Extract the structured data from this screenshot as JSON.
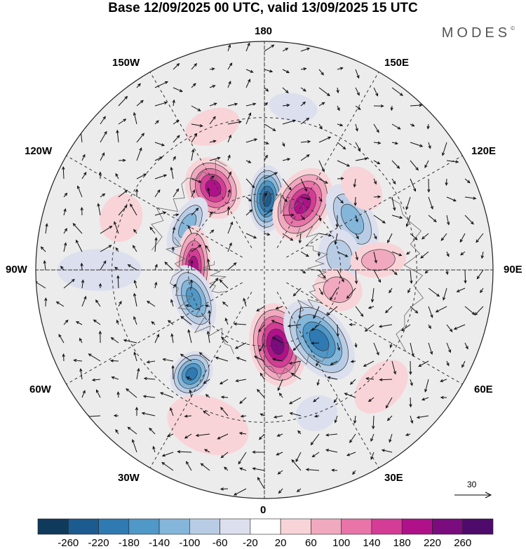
{
  "title": "Base 12/09/2025 00 UTC, valid 13/09/2025 15 UTC",
  "brand": "MODES",
  "brand_mark": "©",
  "longitude_labels": {
    "top": "180",
    "bottom": "0",
    "left": "90W",
    "right": "90E",
    "upper_left": "150W",
    "upper_right": "150E",
    "mid_left": "120W",
    "mid_right": "120E",
    "lower_left": "60W",
    "lower_right": "60E",
    "bottom_left": "30W",
    "bottom_right": "30E"
  },
  "wind_reference": {
    "value": "30"
  },
  "colorbar": {
    "labels": [
      "-260",
      "-220",
      "-180",
      "-140",
      "-100",
      "-60",
      "-20",
      "20",
      "60",
      "100",
      "140",
      "180",
      "220",
      "260"
    ],
    "colors": [
      "#0f3a5c",
      "#1c5b8f",
      "#2f7ab2",
      "#4f98c8",
      "#84b6da",
      "#b8cde5",
      "#dcdfee",
      "#ffffff",
      "#f8d4d8",
      "#f1a9bf",
      "#e874a8",
      "#d43d96",
      "#b0118a",
      "#7a0c7e",
      "#4e0b6b"
    ]
  },
  "anomalies": [
    {
      "lon": 178,
      "lat": 62,
      "rx": 26,
      "ry": 48,
      "value": -230
    },
    {
      "lon": 150,
      "lat": 60,
      "rx": 38,
      "ry": 55,
      "value": 210
    },
    {
      "lon": 212,
      "lat": 52,
      "rx": 38,
      "ry": 46,
      "value": 200
    },
    {
      "lon": 240,
      "lat": 55,
      "rx": 45,
      "ry": 22,
      "value": -130
    },
    {
      "lon": 268,
      "lat": 62,
      "rx": 60,
      "ry": 25,
      "value": 190
    },
    {
      "lon": 292,
      "lat": 60,
      "rx": 50,
      "ry": 28,
      "value": -170
    },
    {
      "lon": 325,
      "lat": 40,
      "rx": 28,
      "ry": 35,
      "value": -190
    },
    {
      "lon": 10,
      "lat": 60,
      "rx": 40,
      "ry": 60,
      "value": 230
    },
    {
      "lon": 38,
      "lat": 55,
      "rx": 40,
      "ry": 65,
      "value": -210
    },
    {
      "lon": 120,
      "lat": 50,
      "rx": 55,
      "ry": 30,
      "value": -140
    },
    {
      "lon": 100,
      "lat": 60,
      "rx": 40,
      "ry": 30,
      "value": -70
    },
    {
      "lon": 75,
      "lat": 60,
      "rx": 30,
      "ry": 35,
      "value": 100
    },
    {
      "lon": 95,
      "lat": 45,
      "rx": 25,
      "ry": 40,
      "value": 80
    },
    {
      "lon": 250,
      "lat": 30,
      "rx": 35,
      "ry": 30,
      "value": 60
    },
    {
      "lon": 270,
      "lat": 25,
      "rx": 30,
      "ry": 60,
      "value": -60
    },
    {
      "lon": 200,
      "lat": 30,
      "rx": 40,
      "ry": 25,
      "value": 45
    },
    {
      "lon": 130,
      "lat": 40,
      "rx": 35,
      "ry": 25,
      "value": 40
    },
    {
      "lon": 340,
      "lat": 25,
      "rx": 60,
      "ry": 40,
      "value": 45
    },
    {
      "lon": 45,
      "lat": 25,
      "rx": 45,
      "ry": 30,
      "value": 40
    },
    {
      "lon": 170,
      "lat": 25,
      "rx": 35,
      "ry": 20,
      "value": -45
    },
    {
      "lon": 20,
      "lat": 30,
      "rx": 30,
      "ry": 25,
      "value": -40
    }
  ]
}
